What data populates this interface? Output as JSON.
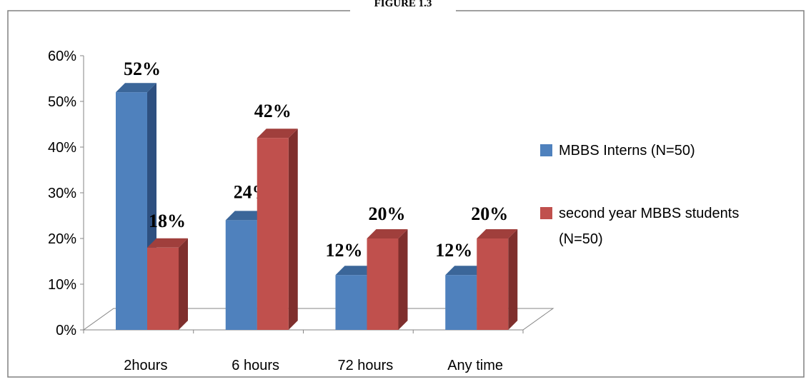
{
  "figure_title": "FIGURE 1.3",
  "colors": {
    "series_0_front": "#4F81BD",
    "series_0_top": "#3B6699",
    "series_0_side": "#2E5080",
    "series_1_front": "#C0504D",
    "series_1_top": "#A03F3C",
    "series_1_side": "#7F2F2D"
  },
  "chart_data": {
    "type": "bar",
    "style": "3d-clustered-column",
    "categories": [
      "2hours",
      "6 hours",
      "72 hours",
      "Any time"
    ],
    "series": [
      {
        "name": "MBBS Interns (N=50)",
        "values": [
          52,
          24,
          12,
          12
        ],
        "labels": [
          "52%",
          "24%",
          "12%",
          "12%"
        ]
      },
      {
        "name": "second year MBBS students (N=50)",
        "values": [
          18,
          42,
          20,
          20
        ],
        "labels": [
          "18%",
          "42%",
          "20%",
          "20%"
        ]
      }
    ],
    "ylim": [
      0,
      60
    ],
    "yticks": [
      "0%",
      "10%",
      "20%",
      "30%",
      "40%",
      "50%",
      "60%"
    ],
    "legend_position": "right",
    "legend_lines": [
      [
        "MBBS Interns (N=50)"
      ],
      [
        "second year MBBS students",
        "(N=50)"
      ]
    ],
    "grid": false
  }
}
